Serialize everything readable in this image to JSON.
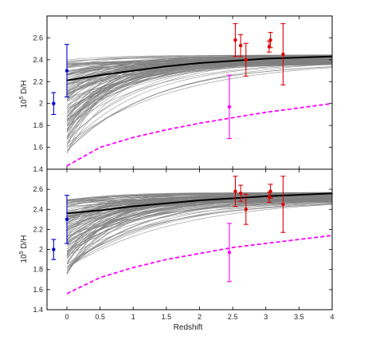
{
  "chart_data": [
    {
      "type": "line",
      "panel": "top",
      "xlabel": "",
      "ylabel": "10^5 D/H",
      "ylabel_base": "10",
      "ylabel_exp": "5",
      "ylabel_rest": " D/H",
      "xlim": [
        -0.3,
        4
      ],
      "ylim": [
        1.4,
        2.8
      ],
      "yticks": [
        "1.4",
        "1.6",
        "1.8",
        "2",
        "2.2",
        "2.4",
        "2.6"
      ],
      "xticks": [],
      "grey_model_curves": {
        "count": 120,
        "end_value_range": [
          2.36,
          2.45
        ],
        "start_value_range": [
          1.5,
          2.4
        ],
        "color": "#808080"
      },
      "series": [
        {
          "style": "solid",
          "color": "#000000",
          "x": [
            0,
            0.5,
            1,
            1.5,
            2,
            2.5,
            3,
            3.5,
            4
          ],
          "y": [
            2.21,
            2.26,
            2.3,
            2.34,
            2.37,
            2.39,
            2.41,
            2.42,
            2.43
          ]
        },
        {
          "style": "dashed",
          "color": "#ff00ff",
          "x": [
            0,
            0.5,
            1,
            1.5,
            2,
            2.5,
            3,
            3.5,
            4
          ],
          "y": [
            1.43,
            1.6,
            1.69,
            1.76,
            1.82,
            1.87,
            1.92,
            1.96,
            2.0
          ]
        }
      ],
      "points": [
        {
          "x": -0.2,
          "y": 2.0,
          "err": 0.1,
          "color": "#0000cc"
        },
        {
          "x": 0.0,
          "y": 2.3,
          "err": 0.24,
          "color": "#0000cc"
        },
        {
          "x": 2.45,
          "y": 1.97,
          "err": 0.29,
          "color": "#ff00ff"
        },
        {
          "x": 2.54,
          "y": 2.58,
          "err": 0.15,
          "color": "#dd0000"
        },
        {
          "x": 2.62,
          "y": 2.53,
          "err": 0.1,
          "color": "#dd0000"
        },
        {
          "x": 2.7,
          "y": 2.4,
          "err": 0.15,
          "color": "#dd0000"
        },
        {
          "x": 3.05,
          "y": 2.52,
          "err": 0.05,
          "color": "#dd0000"
        },
        {
          "x": 3.07,
          "y": 2.58,
          "err": 0.07,
          "color": "#dd0000"
        },
        {
          "x": 3.26,
          "y": 2.45,
          "err": 0.28,
          "color": "#dd0000"
        }
      ]
    },
    {
      "type": "line",
      "panel": "bottom",
      "xlabel": "Redshift",
      "ylabel": "10^5 D/H",
      "ylabel_base": "10",
      "ylabel_exp": "5",
      "ylabel_rest": " D/H",
      "xlim": [
        -0.3,
        4
      ],
      "ylim": [
        1.4,
        2.8
      ],
      "yticks": [
        "1.4",
        "1.6",
        "1.8",
        "2",
        "2.2",
        "2.4",
        "2.6"
      ],
      "xticks": [
        "0",
        "0.5",
        "1",
        "1.5",
        "2",
        "2.5",
        "3",
        "3.5",
        "4"
      ],
      "grey_model_curves": {
        "count": 120,
        "end_value_range": [
          2.48,
          2.57
        ],
        "start_value_range": [
          1.72,
          2.5
        ],
        "color": "#808080"
      },
      "series": [
        {
          "style": "solid",
          "color": "#000000",
          "x": [
            0,
            0.5,
            1,
            1.5,
            2,
            2.5,
            3,
            3.5,
            4
          ],
          "y": [
            2.36,
            2.39,
            2.43,
            2.46,
            2.49,
            2.51,
            2.53,
            2.545,
            2.56
          ]
        },
        {
          "style": "dashed",
          "color": "#ff00ff",
          "x": [
            0,
            0.5,
            1,
            1.5,
            2,
            2.5,
            3,
            3.5,
            4
          ],
          "y": [
            1.56,
            1.72,
            1.82,
            1.9,
            1.96,
            2.02,
            2.06,
            2.1,
            2.14
          ]
        }
      ],
      "points": [
        {
          "x": -0.2,
          "y": 2.0,
          "err": 0.1,
          "color": "#0000cc"
        },
        {
          "x": 0.0,
          "y": 2.3,
          "err": 0.24,
          "color": "#0000cc"
        },
        {
          "x": 2.45,
          "y": 1.97,
          "err": 0.29,
          "color": "#ff00ff"
        },
        {
          "x": 2.54,
          "y": 2.58,
          "err": 0.15,
          "color": "#dd0000"
        },
        {
          "x": 2.62,
          "y": 2.56,
          "err": 0.08,
          "color": "#dd0000"
        },
        {
          "x": 2.7,
          "y": 2.4,
          "err": 0.15,
          "color": "#dd0000"
        },
        {
          "x": 3.05,
          "y": 2.52,
          "err": 0.05,
          "color": "#dd0000"
        },
        {
          "x": 3.07,
          "y": 2.58,
          "err": 0.07,
          "color": "#dd0000"
        },
        {
          "x": 3.26,
          "y": 2.45,
          "err": 0.28,
          "color": "#dd0000"
        }
      ]
    }
  ]
}
